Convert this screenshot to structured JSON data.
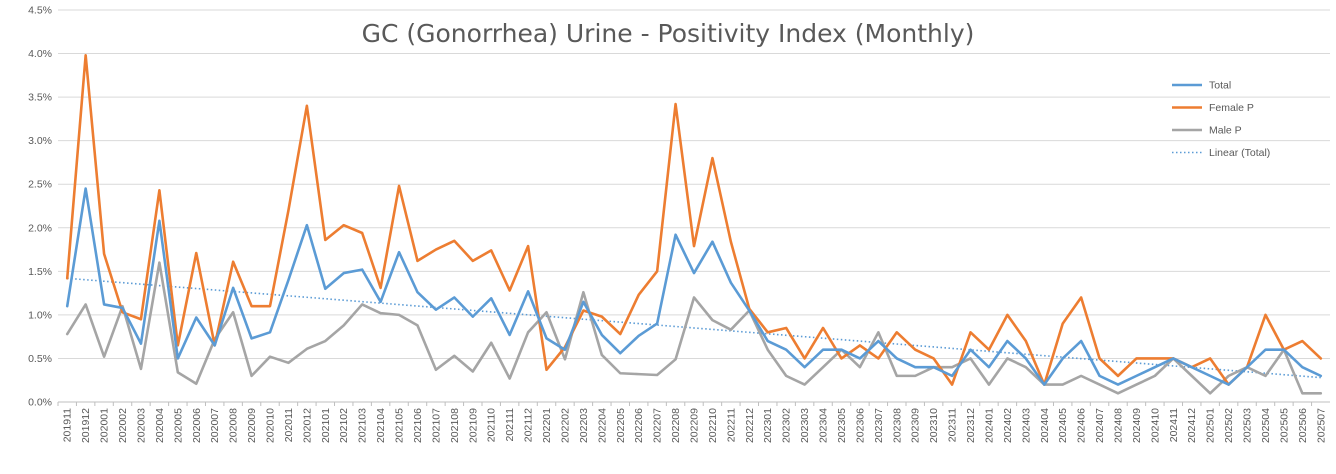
{
  "chart_data": {
    "type": "line",
    "title": "GC (Gonorrhea) Urine - Positivity Index (Monthly)",
    "xlabel": "",
    "ylabel": "",
    "ylim": [
      0,
      0.045
    ],
    "y_tick_labels": [
      "0.0%",
      "0.5%",
      "1.0%",
      "1.5%",
      "2.0%",
      "2.5%",
      "3.0%",
      "3.5%",
      "4.0%",
      "4.5%"
    ],
    "grid": "horizontal",
    "legend_position": "right",
    "categories": [
      "201911",
      "201912",
      "202001",
      "202002",
      "202003",
      "202004",
      "202005",
      "202006",
      "202007",
      "202008",
      "202009",
      "202010",
      "202011",
      "202012",
      "202101",
      "202102",
      "202103",
      "202104",
      "202105",
      "202106",
      "202107",
      "202108",
      "202109",
      "202110",
      "202111",
      "202112",
      "202201",
      "202202",
      "202203",
      "202204",
      "202205",
      "202206",
      "202207",
      "202208",
      "202209",
      "202210",
      "202211",
      "202212",
      "202301",
      "202302",
      "202303",
      "202304",
      "202305",
      "202306",
      "202307",
      "202308",
      "202309",
      "202310",
      "202311",
      "202312",
      "202401",
      "202402",
      "202403",
      "202404",
      "202405",
      "202406",
      "202407",
      "202408",
      "202409",
      "202410",
      "202411",
      "202412",
      "202501",
      "202502",
      "202503",
      "202504",
      "202505",
      "202506",
      "202507"
    ],
    "series": [
      {
        "name": "Total",
        "color": "#5b9bd5",
        "values": [
          0.011,
          0.0245,
          0.0112,
          0.0108,
          0.0067,
          0.0208,
          0.005,
          0.0097,
          0.0065,
          0.0131,
          0.0073,
          0.008,
          0.014,
          0.0203,
          0.013,
          0.0148,
          0.0152,
          0.0115,
          0.0172,
          0.0126,
          0.0106,
          0.012,
          0.0098,
          0.0119,
          0.0077,
          0.0127,
          0.0073,
          0.006,
          0.0115,
          0.0077,
          0.0056,
          0.0076,
          0.009,
          0.0192,
          0.0148,
          0.0184,
          0.0137,
          0.0105,
          0.007,
          0.006,
          0.004,
          0.006,
          0.006,
          0.005,
          0.007,
          0.005,
          0.004,
          0.004,
          0.003,
          0.006,
          0.004,
          0.007,
          0.005,
          0.002,
          0.005,
          0.007,
          0.003,
          0.002,
          0.003,
          0.004,
          0.005,
          0.004,
          0.003,
          0.002,
          0.004,
          0.006,
          0.006,
          0.004,
          0.003
        ]
      },
      {
        "name": "Female P",
        "color": "#ed7d31",
        "values": [
          0.0142,
          0.0398,
          0.017,
          0.0103,
          0.0095,
          0.0243,
          0.0065,
          0.0171,
          0.0065,
          0.0161,
          0.011,
          0.011,
          0.022,
          0.034,
          0.0186,
          0.0203,
          0.0194,
          0.0131,
          0.0248,
          0.0162,
          0.0175,
          0.0185,
          0.0162,
          0.0174,
          0.0128,
          0.0179,
          0.0037,
          0.0063,
          0.0105,
          0.0098,
          0.0078,
          0.0123,
          0.015,
          0.0342,
          0.0179,
          0.028,
          0.0184,
          0.0107,
          0.008,
          0.0085,
          0.005,
          0.0085,
          0.005,
          0.0065,
          0.005,
          0.008,
          0.006,
          0.005,
          0.002,
          0.008,
          0.006,
          0.01,
          0.007,
          0.002,
          0.009,
          0.012,
          0.005,
          0.003,
          0.005,
          0.005,
          0.005,
          0.004,
          0.005,
          0.002,
          0.004,
          0.01,
          0.006,
          0.007,
          0.005
        ]
      },
      {
        "name": "Male P",
        "color": "#a5a5a5",
        "values": [
          0.0078,
          0.0112,
          0.0052,
          0.011,
          0.0038,
          0.016,
          0.0034,
          0.0021,
          0.0072,
          0.0103,
          0.003,
          0.0052,
          0.0045,
          0.0061,
          0.007,
          0.0088,
          0.0112,
          0.0102,
          0.01,
          0.0088,
          0.0037,
          0.0053,
          0.0035,
          0.0068,
          0.0027,
          0.008,
          0.0103,
          0.0049,
          0.0126,
          0.0054,
          0.0033,
          0.0032,
          0.0031,
          0.0049,
          0.012,
          0.0094,
          0.0083,
          0.0105,
          0.006,
          0.003,
          0.002,
          0.004,
          0.006,
          0.004,
          0.008,
          0.003,
          0.003,
          0.004,
          0.004,
          0.005,
          0.002,
          0.005,
          0.004,
          0.002,
          0.002,
          0.003,
          0.002,
          0.001,
          0.002,
          0.003,
          0.005,
          0.003,
          0.001,
          0.003,
          0.004,
          0.003,
          0.006,
          0.001,
          0.001
        ]
      }
    ],
    "trendline": {
      "name": "Linear (Total)",
      "of_series": "Total",
      "color": "#5b9bd5",
      "style": "dotted",
      "start_value": 0.0142,
      "end_value": 0.0028
    },
    "legend": [
      "Total",
      "Female P",
      "Male P",
      "Linear (Total)"
    ]
  }
}
